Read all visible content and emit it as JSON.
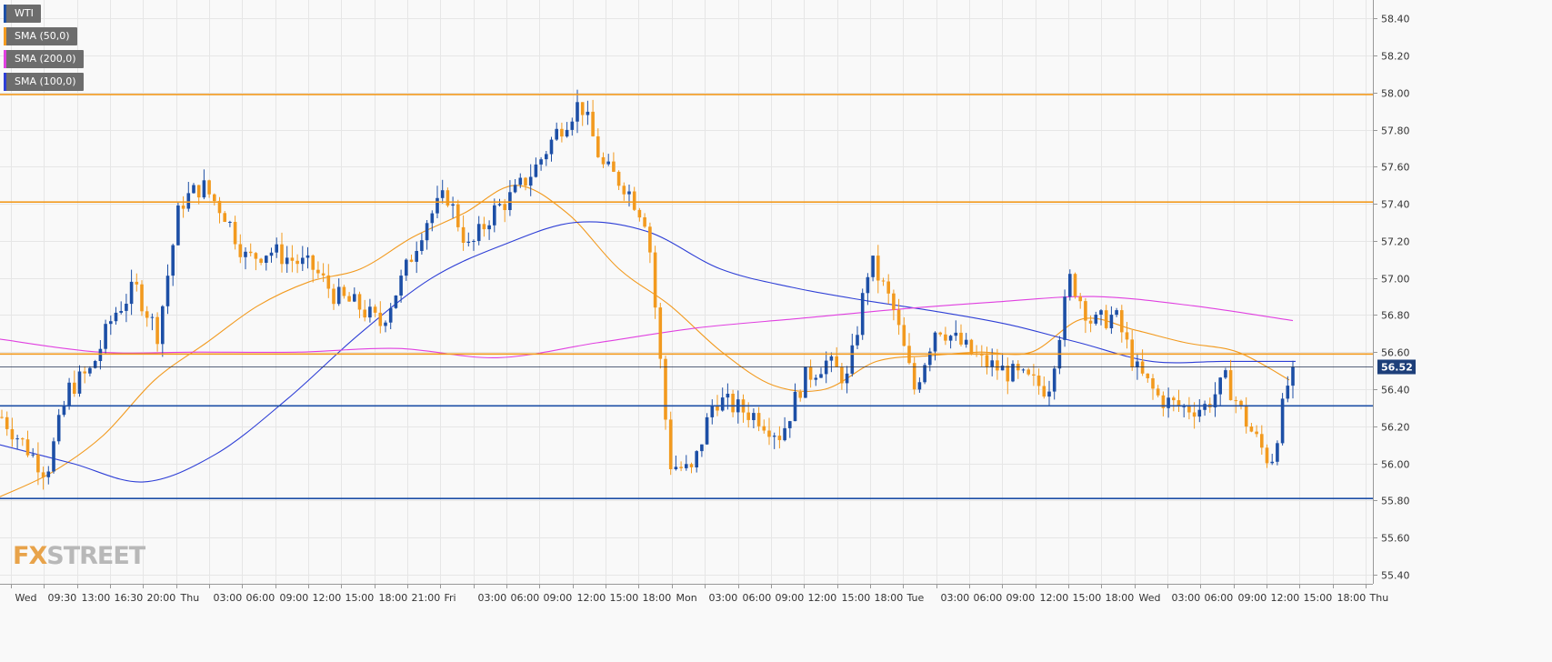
{
  "legend": [
    {
      "label": "WTI",
      "color": "#1d4fa6"
    },
    {
      "label": "SMA (50,0)",
      "color": "#f29a1f"
    },
    {
      "label": "SMA (200,0)",
      "color": "#e040e0"
    },
    {
      "label": "SMA (100,0)",
      "color": "#2e3fd6"
    }
  ],
  "logo": {
    "prefix": "FX",
    "suffix": "STREET"
  },
  "colors": {
    "up": "#1d4fa6",
    "down": "#f29a1f",
    "resistance": "#f29a1f",
    "support": "#1d4fa6",
    "sma50": "#f29a1f",
    "sma200": "#e040e0",
    "sma100": "#2e3fd6"
  },
  "chart_data": {
    "type": "candlestick",
    "instrument": "WTI",
    "ylim": [
      55.35,
      58.5
    ],
    "y_ticks": [
      58.4,
      58.2,
      58.0,
      57.8,
      57.6,
      57.4,
      57.2,
      57.0,
      56.8,
      56.6,
      56.4,
      56.2,
      56.0,
      55.8,
      55.6,
      55.4
    ],
    "x_ticks": [
      "Wed",
      "09:30",
      "13:00",
      "16:30",
      "20:00",
      "Thu",
      "03:00",
      "06:00",
      "09:00",
      "12:00",
      "15:00",
      "18:00",
      "21:00",
      "Fri",
      "03:00",
      "06:00",
      "09:00",
      "12:00",
      "15:00",
      "18:00",
      "Mon",
      "03:00",
      "06:00",
      "09:00",
      "12:00",
      "15:00",
      "18:00",
      "Tue",
      "03:00",
      "06:00",
      "09:00",
      "12:00",
      "15:00",
      "18:00",
      "Wed",
      "03:00",
      "06:00",
      "09:00",
      "12:00",
      "15:00",
      "18:00",
      "Thu"
    ],
    "last_price": "56.52",
    "resistance_levels": [
      57.99,
      57.41,
      56.59
    ],
    "support_levels": [
      56.31,
      55.81
    ],
    "close_path": [
      56.25,
      56.1,
      55.95,
      56.4,
      56.5,
      56.8,
      56.95,
      56.7,
      57.4,
      57.5,
      57.35,
      57.1,
      57.15,
      57.1,
      57.05,
      56.9,
      56.85,
      56.75,
      57.0,
      57.3,
      57.45,
      57.15,
      57.35,
      57.45,
      57.6,
      57.8,
      57.95,
      57.6,
      57.5,
      57.3,
      56.0,
      55.95,
      56.35,
      56.3,
      56.25,
      56.15,
      56.45,
      56.55,
      56.45,
      57.1,
      56.85,
      56.4,
      56.75,
      56.65,
      56.55,
      56.5,
      56.45,
      56.4,
      57.0,
      56.75,
      56.8,
      56.5,
      56.35,
      56.3,
      56.3,
      56.45,
      56.2,
      56.0,
      56.55
    ],
    "series": [
      {
        "name": "SMA (50,0)",
        "values": [
          55.82,
          55.95,
          56.15,
          56.45,
          56.65,
          56.85,
          56.98,
          57.05,
          57.22,
          57.35,
          57.5,
          57.35,
          57.05,
          56.85,
          56.6,
          56.42,
          56.4,
          56.55,
          56.58,
          56.6,
          56.6,
          56.78,
          56.72,
          56.65,
          56.6,
          56.45
        ]
      },
      {
        "name": "SMA (100,0)",
        "values": [
          56.1,
          56.0,
          55.9,
          56.05,
          56.35,
          56.7,
          57.0,
          57.18,
          57.3,
          57.25,
          57.05,
          56.95,
          56.88,
          56.82,
          56.75,
          56.65,
          56.55,
          56.55,
          56.55
        ]
      },
      {
        "name": "SMA (200,0)",
        "values": [
          56.67,
          56.6,
          56.6,
          56.6,
          56.62,
          56.57,
          56.65,
          56.73,
          56.78,
          56.83,
          56.87,
          56.9,
          56.85,
          56.77
        ]
      }
    ]
  }
}
